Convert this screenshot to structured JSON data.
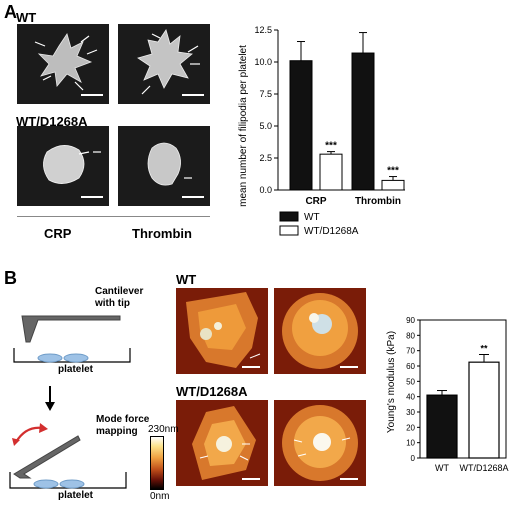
{
  "panelA": {
    "letter": "A",
    "wt_label": "WT",
    "mut_label": "WT/D1268A",
    "col1": "CRP",
    "col2": "Thrombin"
  },
  "panelB": {
    "letter": "B",
    "cantilever_label": "Cantilever\nwith tip",
    "platelet_label_1": "platelet",
    "mode_label": "Mode force\nmapping",
    "platelet_label_2": "platelet",
    "wt_label": "WT",
    "mut_label": "WT/D1268A",
    "colorbar_max": "230nm",
    "colorbar_min": "0nm"
  },
  "colors": {
    "wt_bar": "#111111",
    "mut_bar": "#ffffff",
    "afm_bg": "#7a1c08",
    "sem_bg": "#1b1b1b"
  },
  "chart_data": [
    {
      "type": "bar",
      "ylabel": "mean number of filipodia per platelet",
      "categories": [
        "CRP",
        "Thrombin"
      ],
      "ylim": [
        0,
        12.5
      ],
      "yticks": [
        "0.0",
        "2.5",
        "5.0",
        "7.5",
        "10.0",
        "12.5"
      ],
      "series": [
        {
          "name": "WT",
          "values": [
            10.1,
            10.7
          ],
          "errors": [
            1.5,
            1.6
          ]
        },
        {
          "name": "WT/D1268A",
          "values": [
            2.8,
            0.75
          ],
          "errors": [
            0.2,
            0.3
          ]
        }
      ],
      "significance": [
        "***",
        "***"
      ],
      "legend_position": "bottom"
    },
    {
      "type": "bar",
      "ylabel": "Young's modulus (kPa)",
      "categories": [
        "WT",
        "WT/D1268A"
      ],
      "ylim": [
        0,
        90
      ],
      "yticks": [
        "0",
        "10",
        "20",
        "30",
        "40",
        "50",
        "60",
        "70",
        "80",
        "90"
      ],
      "values": [
        41,
        62.5
      ],
      "errors": [
        3,
        5
      ],
      "significance": [
        "",
        "**"
      ]
    }
  ]
}
